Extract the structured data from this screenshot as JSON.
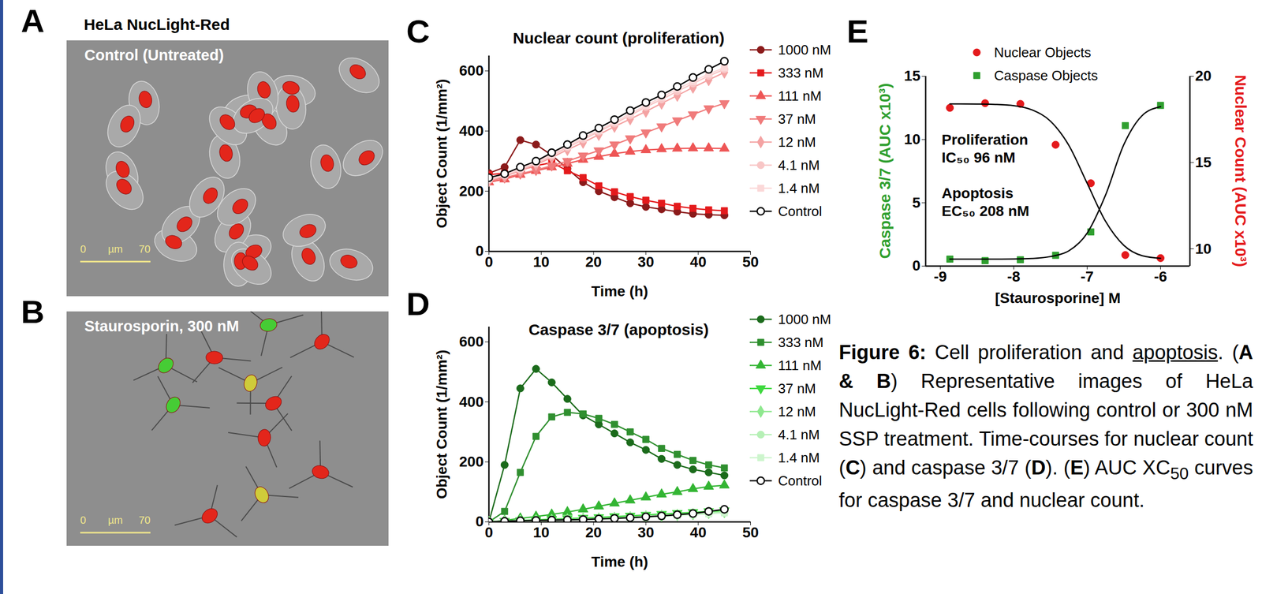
{
  "images": [
    {
      "panel_label": "A",
      "title": "HeLa NucLight-Red",
      "label": "Control (Untreated)",
      "scale_bar": {
        "start": 0,
        "unit": "µm",
        "end": 70
      }
    },
    {
      "panel_label": "B",
      "label": "Staurosporin, 300 nM",
      "scale_bar": {
        "start": 0,
        "unit": "µm",
        "end": 70
      }
    }
  ],
  "chart_data": [
    {
      "type": "line",
      "panel_label": "C",
      "title": "Nuclear count (proliferation)",
      "x_label": "Time (h)",
      "y_label": "Object Count (1/mm²)",
      "x": [
        0,
        3,
        6,
        9,
        12,
        15,
        18,
        21,
        24,
        27,
        30,
        33,
        36,
        39,
        42,
        45
      ],
      "xlim": [
        0,
        50
      ],
      "xticks": [
        0,
        10,
        20,
        30,
        40,
        50
      ],
      "ylim": [
        0,
        650
      ],
      "yticks": [
        0,
        200,
        400,
        600
      ],
      "legend": "right",
      "series": [
        {
          "name": "1000 nM",
          "color": "#8b1a1a",
          "marker": "circle",
          "values": [
            260,
            280,
            370,
            355,
            320,
            275,
            230,
            200,
            180,
            160,
            148,
            140,
            132,
            125,
            122,
            120
          ]
        },
        {
          "name": "333 nM",
          "color": "#e41a1c",
          "marker": "square",
          "values": [
            255,
            260,
            270,
            285,
            295,
            268,
            245,
            218,
            198,
            182,
            170,
            160,
            150,
            143,
            138,
            135
          ]
        },
        {
          "name": "111 nM",
          "color": "#ee5555",
          "marker": "triangle",
          "values": [
            230,
            240,
            255,
            268,
            280,
            292,
            305,
            315,
            325,
            332,
            337,
            340,
            342,
            343,
            343,
            342
          ]
        },
        {
          "name": "37 nM",
          "color": "#f07b7b",
          "marker": "triangle-down",
          "values": [
            235,
            245,
            258,
            270,
            285,
            300,
            318,
            335,
            355,
            375,
            395,
            415,
            435,
            455,
            475,
            492
          ]
        },
        {
          "name": "12 nM",
          "color": "#f4a3a3",
          "marker": "diamond",
          "values": [
            235,
            250,
            268,
            288,
            312,
            338,
            362,
            388,
            415,
            440,
            465,
            492,
            518,
            545,
            570,
            595
          ]
        },
        {
          "name": "4.1 nM",
          "color": "#f8c6c6",
          "marker": "circle",
          "values": [
            238,
            252,
            272,
            292,
            318,
            345,
            372,
            398,
            425,
            452,
            480,
            505,
            532,
            558,
            583,
            605
          ]
        },
        {
          "name": "1.4 nM",
          "color": "#fbd8d8",
          "marker": "square",
          "values": [
            240,
            255,
            275,
            297,
            322,
            350,
            378,
            402,
            430,
            458,
            485,
            512,
            540,
            565,
            590,
            610
          ]
        },
        {
          "name": "Control",
          "color": "#000000",
          "marker": "circle-open",
          "values": [
            245,
            258,
            280,
            300,
            328,
            355,
            385,
            410,
            438,
            468,
            495,
            520,
            548,
            578,
            605,
            632
          ]
        }
      ]
    },
    {
      "type": "line",
      "panel_label": "D",
      "title": "Caspase 3/7 (apoptosis)",
      "x_label": "Time (h)",
      "y_label": "Object Count (1/mm²)",
      "x": [
        0,
        3,
        6,
        9,
        12,
        15,
        18,
        21,
        24,
        27,
        30,
        33,
        36,
        39,
        42,
        45
      ],
      "xlim": [
        0,
        50
      ],
      "xticks": [
        0,
        10,
        20,
        30,
        40,
        50
      ],
      "ylim": [
        0,
        650
      ],
      "yticks": [
        0,
        200,
        400,
        600
      ],
      "legend": "right",
      "series": [
        {
          "name": "1000 nM",
          "color": "#1b6b1b",
          "marker": "circle",
          "values": [
            0,
            190,
            445,
            510,
            465,
            410,
            355,
            325,
            295,
            265,
            240,
            210,
            190,
            175,
            165,
            155
          ]
        },
        {
          "name": "333 nM",
          "color": "#2f8f2f",
          "marker": "square",
          "values": [
            0,
            35,
            165,
            285,
            350,
            365,
            360,
            345,
            325,
            300,
            275,
            245,
            225,
            205,
            190,
            180
          ]
        },
        {
          "name": "111 nM",
          "color": "#33b533",
          "marker": "triangle",
          "values": [
            0,
            5,
            12,
            18,
            25,
            33,
            42,
            52,
            62,
            72,
            82,
            92,
            100,
            110,
            118,
            122
          ]
        },
        {
          "name": "37 nM",
          "color": "#3fd93f",
          "marker": "triangle-down",
          "values": [
            0,
            3,
            5,
            7,
            9,
            11,
            13,
            15,
            18,
            20,
            23,
            26,
            29,
            32,
            35,
            38
          ]
        },
        {
          "name": "12 nM",
          "color": "#8fe88f",
          "marker": "diamond",
          "values": [
            0,
            2,
            4,
            5,
            6,
            8,
            10,
            11,
            13,
            15,
            18,
            20,
            23,
            26,
            30,
            33
          ]
        },
        {
          "name": "4.1 nM",
          "color": "#b5f0b5",
          "marker": "circle",
          "values": [
            0,
            2,
            3,
            4,
            5,
            7,
            8,
            10,
            12,
            14,
            16,
            19,
            22,
            25,
            28,
            31
          ]
        },
        {
          "name": "1.4 nM",
          "color": "#cdf5cd",
          "marker": "square",
          "values": [
            0,
            2,
            3,
            4,
            5,
            6,
            8,
            9,
            11,
            13,
            15,
            18,
            21,
            24,
            27,
            30
          ]
        },
        {
          "name": "Control",
          "color": "#000000",
          "marker": "circle-open",
          "values": [
            0,
            2,
            4,
            5,
            6,
            7,
            8,
            10,
            12,
            14,
            17,
            20,
            24,
            28,
            35,
            42
          ]
        }
      ]
    },
    {
      "type": "scatter",
      "panel_label": "E",
      "x_label": "[Staurosporine] M",
      "y_label": "Caspase 3/7 (AUC x10³)",
      "y2_label": "Nuclear Count (AUC x10³)",
      "xlim": [
        -9.2,
        -5.6
      ],
      "xticks": [
        -9,
        -8,
        -7,
        -6
      ],
      "ylim": [
        0,
        15
      ],
      "yticks": [
        0,
        5,
        10,
        15
      ],
      "y2lim": [
        9,
        20
      ],
      "y2ticks": [
        10,
        15,
        20
      ],
      "legend": "top",
      "annotations": [
        [
          "Proliferation",
          "IC₅₀ 96 nM"
        ],
        [
          "Apoptosis",
          "EC₅₀ 208 nM"
        ]
      ],
      "series": [
        {
          "name": "Nuclear Objects",
          "color": "#e41a1c",
          "marker": "circle",
          "axis": "y2",
          "x": [
            -8.87,
            -8.39,
            -7.91,
            -7.43,
            -6.95,
            -6.48,
            -6.0
          ],
          "values": [
            18.17,
            18.44,
            18.4,
            16.03,
            13.8,
            9.64,
            9.46
          ]
        },
        {
          "name": "Caspase Objects",
          "color": "#2f9f2f",
          "marker": "square",
          "axis": "y",
          "x": [
            -8.87,
            -8.39,
            -7.91,
            -7.43,
            -6.95,
            -6.48,
            -6.0
          ],
          "values": [
            0.55,
            0.43,
            0.5,
            0.85,
            2.7,
            11.1,
            12.7
          ]
        },
        {
          "type": "line",
          "color": "#000000",
          "axis": "y2",
          "x": [
            -8.87,
            -8.5,
            -8.25,
            -8.0,
            -7.75,
            -7.5,
            -7.25,
            -7.0,
            -6.75,
            -6.5,
            -6.25,
            -6.0
          ],
          "values": [
            18.4,
            18.39,
            18.37,
            18.3,
            18.05,
            17.4,
            16.0,
            13.8,
            11.6,
            10.2,
            9.6,
            9.45
          ]
        },
        {
          "type": "line",
          "color": "#000000",
          "axis": "y",
          "x": [
            -8.87,
            -8.5,
            -8.25,
            -8.0,
            -7.75,
            -7.5,
            -7.25,
            -7.0,
            -6.75,
            -6.5,
            -6.25,
            -6.0
          ],
          "values": [
            0.55,
            0.55,
            0.55,
            0.56,
            0.6,
            0.75,
            1.2,
            2.6,
            5.6,
            9.6,
            11.9,
            12.6
          ]
        }
      ]
    }
  ],
  "caption": [
    {
      "text": "Figure 6:",
      "style": "bold"
    },
    {
      "text": " Cell proliferation and "
    },
    {
      "text": "apoptosis",
      "style": "underline"
    },
    {
      "text": ". ("
    },
    {
      "text": "A & B",
      "style": "bold"
    },
    {
      "text": ") Representative images of HeLa NucLight-Red cells following control or 300 nM SSP treatment. Time-courses for nuclear count ("
    },
    {
      "text": "C",
      "style": "bold"
    },
    {
      "text": ") and caspase 3/7 ("
    },
    {
      "text": "D",
      "style": "bold"
    },
    {
      "text": "). ("
    },
    {
      "text": "E",
      "style": "bold"
    },
    {
      "text": ") AUC XC"
    },
    {
      "text": "50",
      "style": "subscript"
    },
    {
      "text": " curves for caspase 3/7 and nuclear count."
    }
  ]
}
